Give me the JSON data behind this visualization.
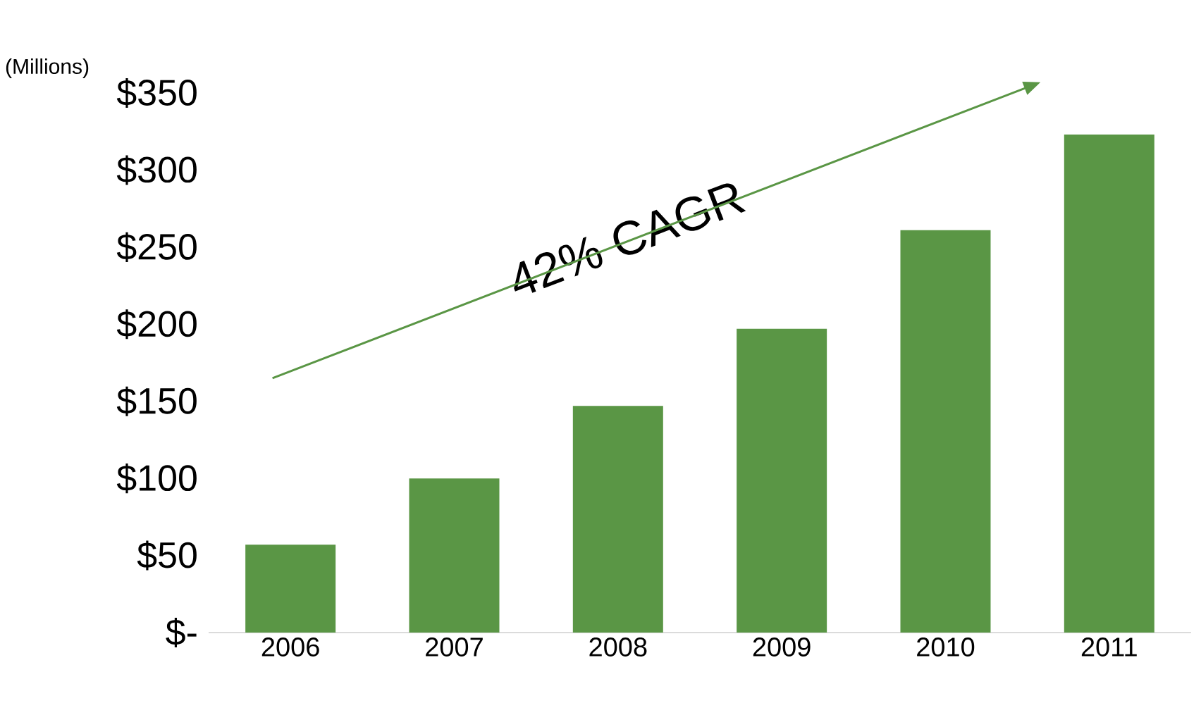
{
  "chart_data": {
    "type": "bar",
    "ylabel": "(Millions)",
    "categories": [
      "2006",
      "2007",
      "2008",
      "2009",
      "2010",
      "2011"
    ],
    "values": [
      57,
      100,
      147,
      197,
      261,
      323
    ],
    "color": "#5a9645",
    "ylim": [
      0,
      350
    ],
    "yticks": [
      {
        "value": 0,
        "label": "$-"
      },
      {
        "value": 50,
        "label": "$50"
      },
      {
        "value": 100,
        "label": "$100"
      },
      {
        "value": 150,
        "label": "$150"
      },
      {
        "value": 200,
        "label": "$200"
      },
      {
        "value": 250,
        "label": "$250"
      },
      {
        "value": 300,
        "label": "$300"
      },
      {
        "value": 350,
        "label": "$350"
      }
    ],
    "annotations": [
      "42% CAGR"
    ]
  }
}
